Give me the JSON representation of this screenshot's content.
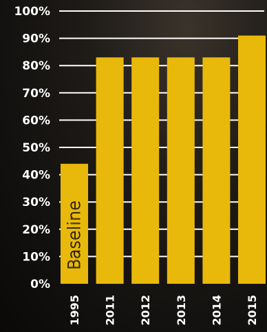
{
  "chart_data": {
    "type": "bar",
    "categories": [
      "1995",
      "2011",
      "2012",
      "2013",
      "2014",
      "2015"
    ],
    "values": [
      44,
      83,
      83,
      83,
      83,
      91
    ],
    "title": "",
    "xlabel": "",
    "ylabel": "",
    "ylim": [
      0,
      100
    ],
    "yticks": [
      "0%",
      "10%",
      "20%",
      "30%",
      "40%",
      "50%",
      "60%",
      "70%",
      "80%",
      "90%",
      "100%"
    ],
    "grid": true,
    "annotation": "Baseline",
    "colors": {
      "bar": "#e8b90a",
      "grid": "#ffffff",
      "text": "#ffffff"
    }
  }
}
